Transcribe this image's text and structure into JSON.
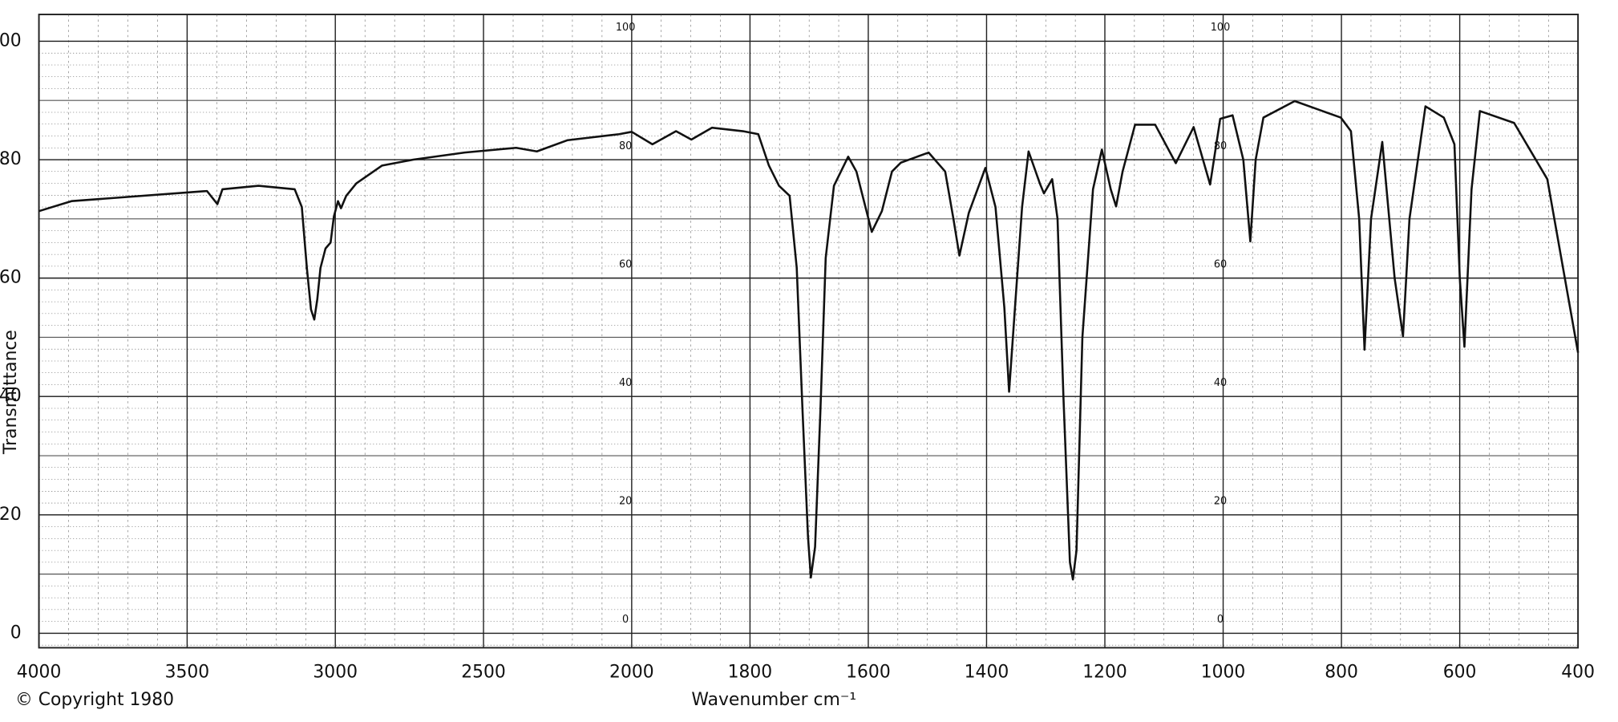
{
  "chart_data": {
    "type": "line",
    "x_label": "Wavenumber cm⁻¹",
    "y_label": "Transmittance",
    "copyright": "© Copyright 1980",
    "color": "#111111",
    "grid": true,
    "x_scale": "split",
    "x_split": 2000,
    "xlim": [
      4000,
      400
    ],
    "xticks": [
      4000,
      3500,
      3000,
      2500,
      2000,
      1800,
      1600,
      1400,
      1200,
      1000,
      800,
      600,
      400
    ],
    "ylim": [
      0,
      100
    ],
    "yticks": [
      0,
      20,
      40,
      60,
      80,
      100
    ],
    "inner_yticks": [
      0,
      20,
      40,
      60,
      80,
      100
    ],
    "x": [
      4000,
      3890,
      3433,
      3398,
      3381,
      3259,
      3137,
      3113,
      3096,
      3082,
      3071,
      3061,
      3050,
      3033,
      3016,
      3005,
      2991,
      2981,
      2963,
      2929,
      2842,
      2737,
      2563,
      2390,
      2320,
      2216,
      2042,
      2000,
      1965,
      1925,
      1899,
      1864,
      1812,
      1786,
      1768,
      1751,
      1733,
      1721,
      1711,
      1702,
      1697,
      1690,
      1681,
      1672,
      1658,
      1634,
      1620,
      1594,
      1577,
      1560,
      1545,
      1498,
      1470,
      1456,
      1446,
      1430,
      1402,
      1385,
      1370,
      1362,
      1352,
      1340,
      1329,
      1310,
      1303,
      1289,
      1280,
      1270,
      1259,
      1254,
      1248,
      1238,
      1220,
      1205,
      1190,
      1181,
      1170,
      1149,
      1115,
      1080,
      1050,
      1022,
      1005,
      984,
      966,
      954,
      945,
      932,
      879,
      801,
      784,
      770,
      761,
      750,
      731,
      710,
      696,
      685,
      658,
      627,
      609,
      600,
      592,
      580,
      566,
      508,
      452,
      400
    ],
    "values": [
      71.3,
      73,
      74.7,
      72.5,
      75,
      75.6,
      75,
      72,
      61.7,
      54.7,
      53,
      56.4,
      61.7,
      65,
      66,
      70.4,
      73,
      71.8,
      73.9,
      76,
      79,
      80,
      81.2,
      82,
      81.4,
      83.3,
      84.3,
      84.7,
      82.6,
      84.8,
      83.4,
      85.4,
      84.8,
      84.3,
      79,
      75.6,
      73.9,
      61.7,
      37.3,
      16.4,
      9.4,
      14.6,
      37.3,
      63.4,
      75.6,
      80.5,
      78,
      67.8,
      71.3,
      78,
      79.5,
      81.2,
      78,
      70,
      63.8,
      71,
      78.6,
      72,
      55,
      40.8,
      55,
      72,
      81.4,
      76,
      74.3,
      76.7,
      70,
      40,
      12,
      9.1,
      14,
      50,
      75,
      81.7,
      75,
      72.1,
      78,
      85.9,
      85.9,
      79.4,
      85.5,
      75.8,
      86.9,
      87.5,
      80,
      66.2,
      80,
      87.1,
      89.9,
      87.1,
      84.8,
      70,
      47.9,
      70,
      83,
      60,
      50.2,
      70,
      89,
      87.1,
      82.6,
      60,
      48.4,
      75,
      88.2,
      86.2,
      76.7,
      47.4
    ]
  }
}
